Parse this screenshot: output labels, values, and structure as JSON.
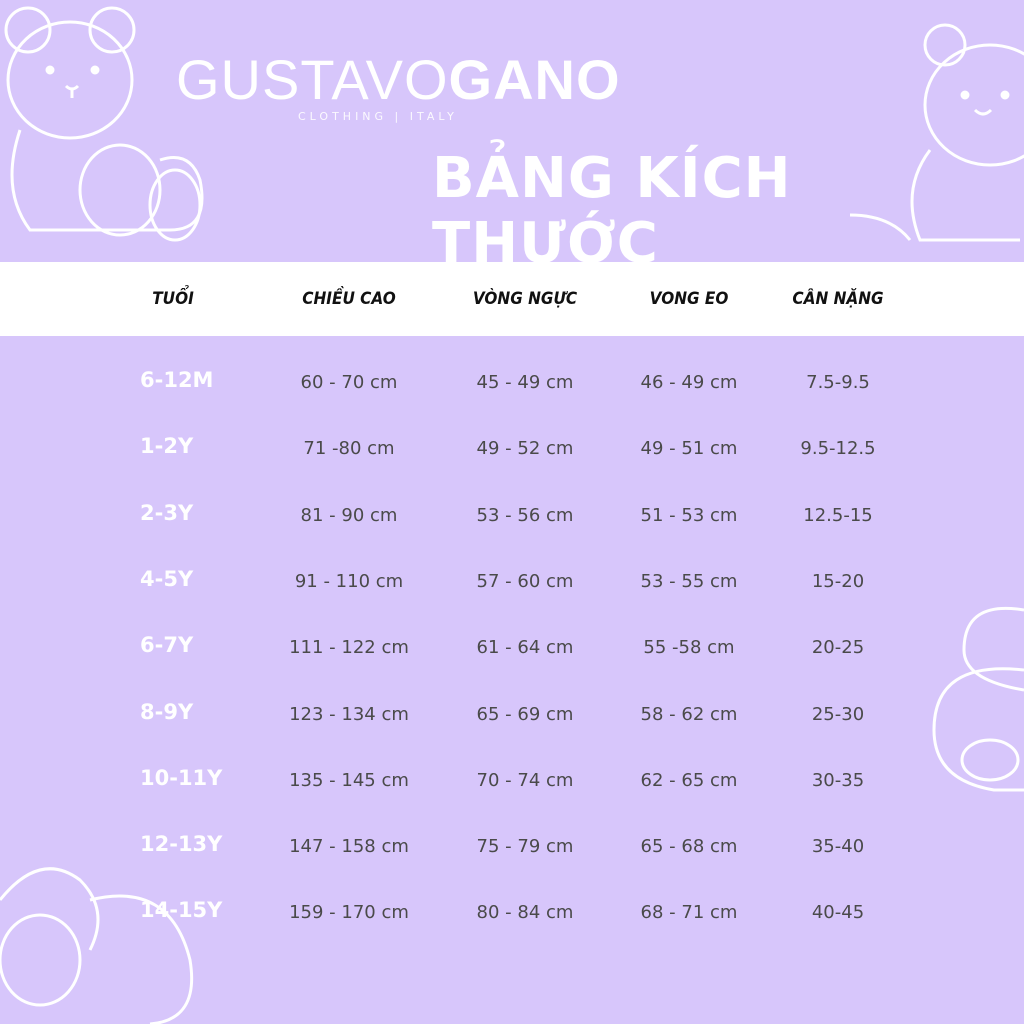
{
  "brand": {
    "name_light": "GUSTAVO",
    "name_bold": "GANO",
    "tagline": "CLOTHING | ITALY"
  },
  "title": "BẢNG KÍCH THƯỚC",
  "colors": {
    "background": "#d7c6fb",
    "header_band": "#ffffff",
    "value_text": "#4a4a4a",
    "age_text": "#ffffff"
  },
  "table": {
    "headers": [
      "TUỔI",
      "CHIỀU CAO",
      "VÒNG NGỰC",
      "VONG EO",
      "CÂN NẶNG"
    ],
    "rows": [
      [
        "6-12M",
        "60 - 70 cm",
        "45 - 49 cm",
        "46 - 49 cm",
        "7.5-9.5"
      ],
      [
        "1-2Y",
        "71 -80 cm",
        "49 - 52 cm",
        "49 - 51 cm",
        "9.5-12.5"
      ],
      [
        "2-3Y",
        "81 - 90 cm",
        "53 - 56 cm",
        "51 - 53 cm",
        "12.5-15"
      ],
      [
        "4-5Y",
        "91 - 110 cm",
        "57 - 60 cm",
        "53 - 55 cm",
        "15-20"
      ],
      [
        "6-7Y",
        "111 - 122 cm",
        "61 - 64 cm",
        "55 -58 cm",
        "20-25"
      ],
      [
        "8-9Y",
        "123 - 134 cm",
        "65 - 69 cm",
        "58 - 62 cm",
        "25-30"
      ],
      [
        "10-11Y",
        "135 - 145 cm",
        "70 - 74 cm",
        "62 - 65 cm",
        "30-35"
      ],
      [
        "12-13Y",
        "147 - 158 cm",
        "75 - 79 cm",
        "65 - 68 cm",
        "35-40"
      ],
      [
        "14-15Y",
        "159 - 170 cm",
        "80 - 84 cm",
        "68 - 71 cm",
        "40-45"
      ]
    ]
  }
}
